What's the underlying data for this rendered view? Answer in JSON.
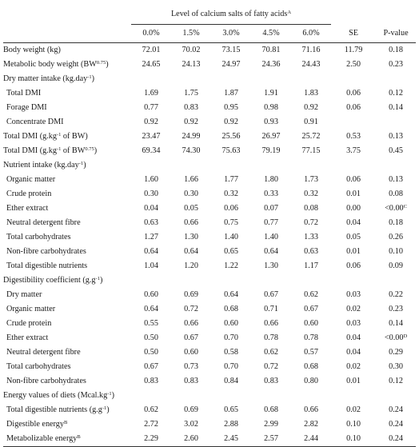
{
  "header": {
    "group_label": "Level of calcium salts of fatty acids",
    "group_label_sup": "A",
    "levels": [
      "0.0%",
      "1.5%",
      "3.0%",
      "4.5%",
      "6.0%"
    ],
    "se_label": "SE",
    "pvalue_label": "P-value"
  },
  "rows": [
    {
      "label": "Body weight (kg)",
      "sup": "",
      "values": [
        "72.01",
        "70.02",
        "73.15",
        "70.81",
        "71.16"
      ],
      "se": "11.79",
      "p": "0.18",
      "p_sup": ""
    },
    {
      "label": "Metabolic body weight (BW",
      "sup": "0.75",
      "suffix": ")",
      "values": [
        "24.65",
        "24.13",
        "24.97",
        "24.36",
        "24.43"
      ],
      "se": "2.50",
      "p": "0.23",
      "p_sup": ""
    },
    {
      "label": "Dry matter intake (kg.day",
      "sup": "-1",
      "suffix": ")",
      "section": true
    },
    {
      "label": "Total DMI",
      "sup": "",
      "values": [
        "1.69",
        "1.75",
        "1.87",
        "1.91",
        "1.83"
      ],
      "se": "0.06",
      "p": "0.12",
      "p_sup": "",
      "sub": true
    },
    {
      "label": "Forage DMI",
      "sup": "",
      "values": [
        "0.77",
        "0.83",
        "0.95",
        "0.98",
        "0.92"
      ],
      "se": "0.06",
      "p": "0.14",
      "p_sup": "",
      "sub": true
    },
    {
      "label": "Concentrate DMI",
      "sup": "",
      "values": [
        "0.92",
        "0.92",
        "0.92",
        "0.93",
        "0.91"
      ],
      "se": "",
      "p": "",
      "p_sup": "",
      "sub": true
    },
    {
      "label": "Total DMI (g.kg",
      "sup": "-1",
      "suffix": " of BW)",
      "values": [
        "23.47",
        "24.99",
        "25.56",
        "26.97",
        "25.72"
      ],
      "se": "0.53",
      "p": "0.13",
      "p_sup": ""
    },
    {
      "label": "Total DMI (g.kg",
      "sup": "-1",
      "suffix": " of BW",
      "sup2": "0.75",
      "suffix2": ")",
      "values": [
        "69.34",
        "74.30",
        "75.63",
        "79.19",
        "77.15"
      ],
      "se": "3.75",
      "p": "0.45",
      "p_sup": ""
    },
    {
      "label": "Nutrient intake (kg.day",
      "sup": "-1",
      "suffix": ")",
      "section": true
    },
    {
      "label": "Organic matter",
      "sup": "",
      "values": [
        "1.60",
        "1.66",
        "1.77",
        "1.80",
        "1.73"
      ],
      "se": "0.06",
      "p": "0.13",
      "p_sup": "",
      "sub": true
    },
    {
      "label": "Crude protein",
      "sup": "",
      "values": [
        "0.30",
        "0.30",
        "0.32",
        "0.33",
        "0.32"
      ],
      "se": "0.01",
      "p": "0.08",
      "p_sup": "",
      "sub": true
    },
    {
      "label": "Ether extract",
      "sup": "",
      "values": [
        "0.04",
        "0.05",
        "0.06",
        "0.07",
        "0.08"
      ],
      "se": "0.00",
      "p": "<0.00",
      "p_sup": "C",
      "sub": true
    },
    {
      "label": "Neutral detergent fibre",
      "sup": "",
      "values": [
        "0.63",
        "0.66",
        "0.75",
        "0.77",
        "0.72"
      ],
      "se": "0.04",
      "p": "0.18",
      "p_sup": "",
      "sub": true
    },
    {
      "label": "Total carbohydrates",
      "sup": "",
      "values": [
        "1.27",
        "1.30",
        "1.40",
        "1.40",
        "1.33"
      ],
      "se": "0.05",
      "p": "0.26",
      "p_sup": "",
      "sub": true
    },
    {
      "label": "Non-fibre carbohydrates",
      "sup": "",
      "values": [
        "0.64",
        "0.64",
        "0.65",
        "0.64",
        "0.63"
      ],
      "se": "0.01",
      "p": "0.10",
      "p_sup": "",
      "sub": true
    },
    {
      "label": "Total digestible nutrients",
      "sup": "",
      "values": [
        "1.04",
        "1.20",
        "1.22",
        "1.30",
        "1.17"
      ],
      "se": "0.06",
      "p": "0.09",
      "p_sup": "",
      "sub": true
    },
    {
      "label": "Digestibility coefficient (g.g",
      "sup": "-1",
      "suffix": ")",
      "section": true
    },
    {
      "label": "Dry matter",
      "sup": "",
      "values": [
        "0.60",
        "0.69",
        "0.64",
        "0.67",
        "0.62"
      ],
      "se": "0.03",
      "p": "0.22",
      "p_sup": "",
      "sub": true
    },
    {
      "label": "Organic matter",
      "sup": "",
      "values": [
        "0.64",
        "0.72",
        "0.68",
        "0.71",
        "0.67"
      ],
      "se": "0.02",
      "p": "0.23",
      "p_sup": "",
      "sub": true
    },
    {
      "label": "Crude protein",
      "sup": "",
      "values": [
        "0.55",
        "0.66",
        "0.60",
        "0.66",
        "0.60"
      ],
      "se": "0.03",
      "p": "0.14",
      "p_sup": "",
      "sub": true
    },
    {
      "label": "Ether extract",
      "sup": "",
      "values": [
        "0.50",
        "0.67",
        "0.70",
        "0.78",
        "0.78"
      ],
      "se": "0.04",
      "p": "<0.00",
      "p_sup": "D",
      "sub": true
    },
    {
      "label": "Neutral detergent fibre",
      "sup": "",
      "values": [
        "0.50",
        "0.60",
        "0.58",
        "0.62",
        "0.57"
      ],
      "se": "0.04",
      "p": "0.29",
      "p_sup": "",
      "sub": true
    },
    {
      "label": "Total carbohydrates",
      "sup": "",
      "values": [
        "0.67",
        "0.73",
        "0.70",
        "0.72",
        "0.68"
      ],
      "se": "0.02",
      "p": "0.30",
      "p_sup": "",
      "sub": true
    },
    {
      "label": "Non-fibre carbohydrates",
      "sup": "",
      "values": [
        "0.83",
        "0.83",
        "0.84",
        "0.83",
        "0.80"
      ],
      "se": "0.01",
      "p": "0.12",
      "p_sup": "",
      "sub": true
    },
    {
      "label": "Energy values of diets (Mcal.kg",
      "sup": "-1",
      "suffix": ")",
      "section": true
    },
    {
      "label": "Total digestible nutrients (g.g",
      "sup": "-1",
      "suffix": ")",
      "values": [
        "0.62",
        "0.69",
        "0.65",
        "0.68",
        "0.66"
      ],
      "se": "0.02",
      "p": "0.24",
      "p_sup": "",
      "sub": true
    },
    {
      "label": "Digestible energy",
      "sup": "B",
      "values": [
        "2.72",
        "3.02",
        "2.88",
        "2.99",
        "2.82"
      ],
      "se": "0.10",
      "p": "0.24",
      "p_sup": "",
      "sub": true
    },
    {
      "label": "Metabolizable energy",
      "sup": "B",
      "values": [
        "2.29",
        "2.60",
        "2.45",
        "2.57",
        "2.44"
      ],
      "se": "0.10",
      "p": "0.24",
      "p_sup": "",
      "sub": true
    }
  ]
}
